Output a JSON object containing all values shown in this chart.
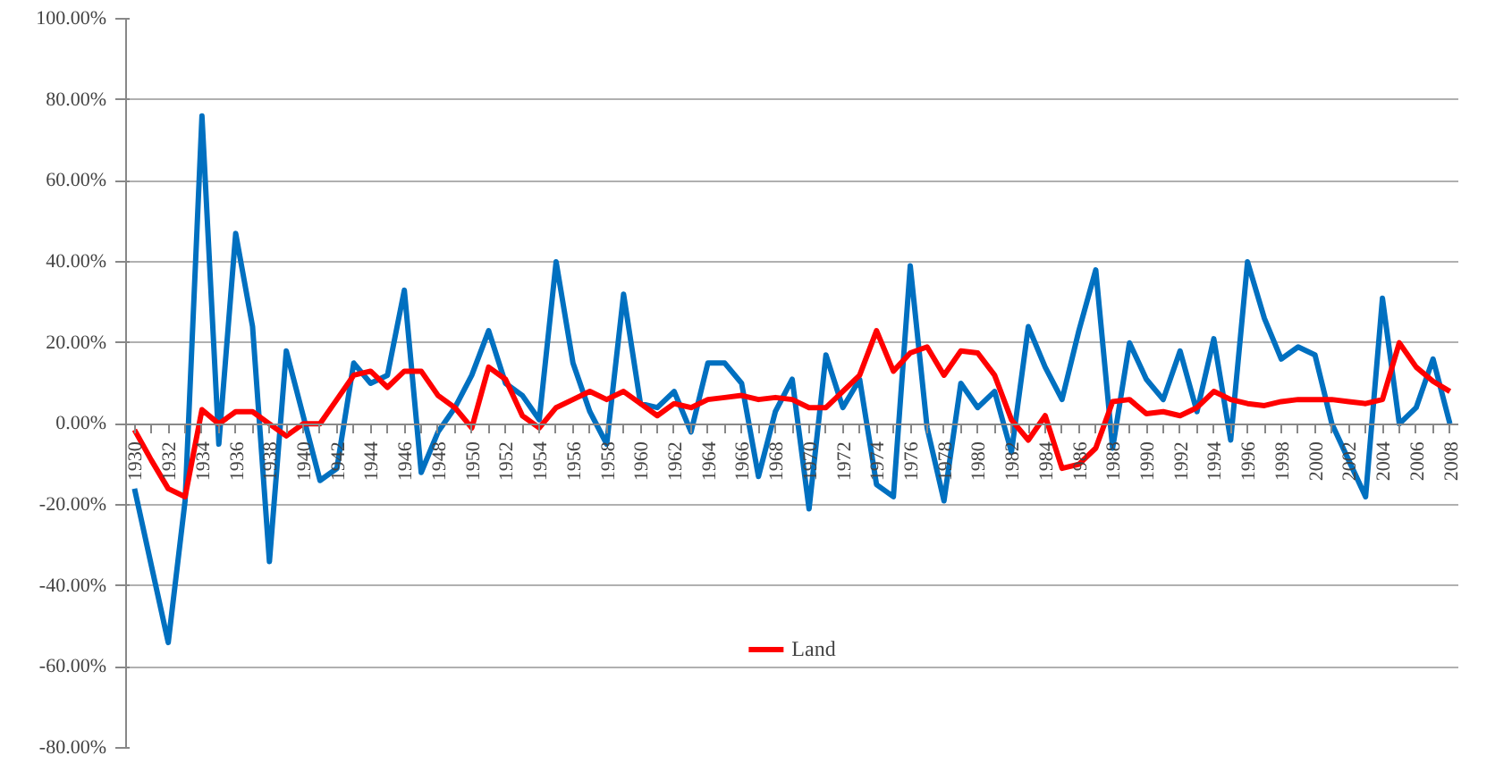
{
  "chart_data": {
    "type": "line",
    "categories": [
      "1930",
      null,
      "1932",
      null,
      "1934",
      null,
      "1936",
      null,
      "1938",
      null,
      "1940",
      null,
      "1942",
      null,
      "1944",
      null,
      "1946",
      null,
      "1948",
      null,
      "1950",
      null,
      "1952",
      null,
      "1954",
      null,
      "1956",
      null,
      "1958",
      null,
      "1960",
      null,
      "1962",
      null,
      "1964",
      null,
      "1966",
      null,
      "1968",
      null,
      "1970",
      null,
      "1972",
      null,
      "1974",
      null,
      "1976",
      null,
      "1978",
      null,
      "1980",
      null,
      "1982",
      null,
      "1984",
      null,
      "1986",
      null,
      "1988",
      null,
      "1990",
      null,
      "1992",
      null,
      "1994",
      null,
      "1996",
      null,
      "1998",
      null,
      "2000",
      null,
      "2002",
      null,
      "2004",
      null,
      "2006",
      null,
      "2008"
    ],
    "series": [
      {
        "color": "#0070c0",
        "values": [
          -16,
          -35,
          -54,
          -19,
          76,
          -5,
          47,
          24,
          -34,
          18,
          2,
          -14,
          -11,
          15,
          10,
          12,
          33,
          -12,
          -2,
          4,
          12,
          23,
          10,
          7,
          1,
          40,
          15,
          3,
          -5,
          32,
          5,
          4,
          8,
          -2,
          15,
          15,
          10,
          -13,
          3,
          11,
          -21,
          17,
          4,
          11,
          -15,
          -18,
          39,
          -1,
          -19,
          10,
          4,
          8,
          -7,
          24,
          14,
          6,
          23,
          38,
          -6,
          20,
          11,
          6,
          18,
          3,
          21,
          -4,
          40,
          26,
          16,
          19,
          17,
          0,
          -9,
          -18,
          31,
          0,
          4,
          16,
          0
        ]
      },
      {
        "name": "Land",
        "color": "#ff0000",
        "values": [
          -1.5,
          -9,
          -16,
          -18,
          3.5,
          0,
          3,
          3,
          0,
          -3,
          0,
          0,
          6,
          12,
          13,
          9,
          13,
          13,
          7,
          4,
          -1,
          14,
          11,
          2,
          -1,
          4,
          6,
          8,
          6,
          8,
          5,
          2,
          5,
          4,
          6,
          6.5,
          7,
          6,
          6.5,
          6,
          4,
          4,
          8,
          12,
          23,
          13,
          17.5,
          19,
          12,
          18,
          17.5,
          12,
          1,
          -4,
          2,
          -11,
          -10,
          -6,
          5.5,
          6,
          2.5,
          3,
          2,
          4,
          8,
          6,
          5,
          4.5,
          5.5,
          6,
          6,
          6,
          5.5,
          5,
          6,
          20,
          14,
          10.5,
          8
        ]
      }
    ],
    "ylim": [
      -80,
      100
    ],
    "yticks": [
      {
        "value": -80,
        "label": "-80.00%"
      },
      {
        "value": -60,
        "label": "-60.00%"
      },
      {
        "value": -40,
        "label": "-40.00%"
      },
      {
        "value": -20,
        "label": "-20.00%"
      },
      {
        "value": 0,
        "label": "0.00%"
      },
      {
        "value": 20,
        "label": "20.00%"
      },
      {
        "value": 40,
        "label": "40.00%"
      },
      {
        "value": 60,
        "label": "60.00%"
      },
      {
        "value": 80,
        "label": "80.00%"
      },
      {
        "value": 100,
        "label": "100.00%"
      }
    ],
    "grid": "y",
    "legend": "bottom",
    "marker": "none",
    "line_style": "solid"
  }
}
